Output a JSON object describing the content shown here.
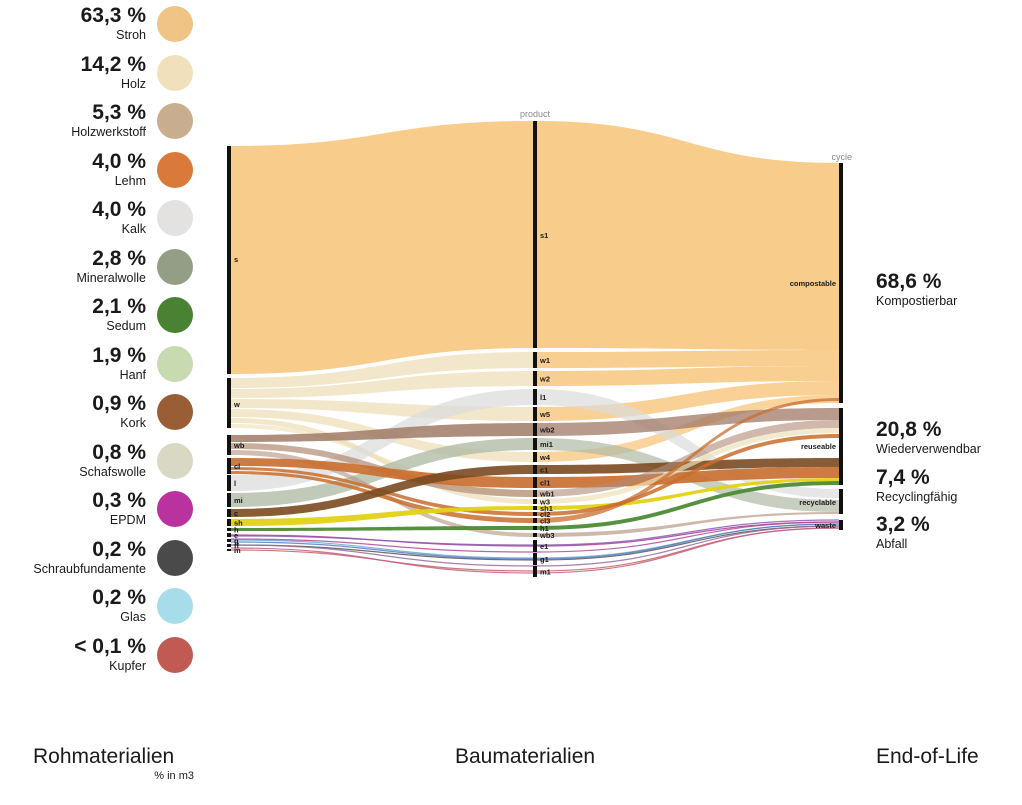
{
  "legend": [
    {
      "pct": "63,3 %",
      "name": "Stroh",
      "color": "#f0c484"
    },
    {
      "pct": "14,2 %",
      "name": "Holz",
      "color": "#f0e1bc"
    },
    {
      "pct": "5,3 %",
      "name": "Holzwerkstoff",
      "color": "#c9ad8f"
    },
    {
      "pct": "4,0 %",
      "name": "Lehm",
      "color": "#d97a3a"
    },
    {
      "pct": "4,0 %",
      "name": "Kalk",
      "color": "#e4e1e1"
    },
    {
      "pct": "2,8 %",
      "name": "Mineralwolle",
      "color": "#939e85"
    },
    {
      "pct": "2,1 %",
      "name": "Sedum",
      "color": "#4a8234"
    },
    {
      "pct": "1,9 %",
      "name": "Hanf",
      "color": "#c8dab0"
    },
    {
      "pct": "0,9 %",
      "name": "Kork",
      "color": "#9a5e36"
    },
    {
      "pct": "0,8 %",
      "name": "Schafswolle",
      "color": "#d9d8c4"
    },
    {
      "pct": "0,3 %",
      "name": "EPDM",
      "color": "#b9329e"
    },
    {
      "pct": "0,2 %",
      "name": "Schraubfundamente",
      "color": "#4a4a4a"
    },
    {
      "pct": "0,2 %",
      "name": "Glas",
      "color": "#a7dcea"
    },
    {
      "pct": "< 0,1 %",
      "name": "Kupfer",
      "color": "#c05a52"
    }
  ],
  "sankey": {
    "column_labels": {
      "product": "product",
      "cycle": "cycle"
    },
    "source_nodes": [
      "s",
      "w",
      "wb",
      "cl",
      "l",
      "mi",
      "c",
      "sh",
      "h",
      "e",
      "g",
      "ff",
      "m"
    ],
    "product_nodes": [
      "s1",
      "w1",
      "w2",
      "l1",
      "w5",
      "wb2",
      "mi1",
      "w4",
      "c1",
      "cl1",
      "wb1",
      "w3",
      "sh1",
      "cl2",
      "cl3",
      "h1",
      "wb3",
      "e1",
      "g1",
      "m1"
    ],
    "target_nodes": [
      "compostable",
      "reuseable",
      "recyclable",
      "waste"
    ],
    "flow_colors": {
      "s": "#f8c985",
      "w": "#eedfb8",
      "wb": "#a57b68",
      "cl": "#c96d2c",
      "l": "#dcdcdc",
      "mi": "#b1bba6",
      "c": "#7a4a20",
      "sh": "#e0d214",
      "h": "#4e8b36",
      "e": "#a83a94",
      "g": "#6aa7d0",
      "ff": "#555555",
      "m": "#c4605a"
    }
  },
  "end_of_life": [
    {
      "pct": "68,6 %",
      "name": "Kompostierbar"
    },
    {
      "pct": "20,8 %",
      "name": "Wiederverwendbar"
    },
    {
      "pct": "7,4 %",
      "name": "Recyclingfähig"
    },
    {
      "pct": "3,2 %",
      "name": "Abfall"
    }
  ],
  "footer": {
    "raw_title": "Rohmaterialien",
    "raw_sub": "% in m3",
    "building_title": "Baumaterialien",
    "eol_title": "End-of-Life"
  }
}
